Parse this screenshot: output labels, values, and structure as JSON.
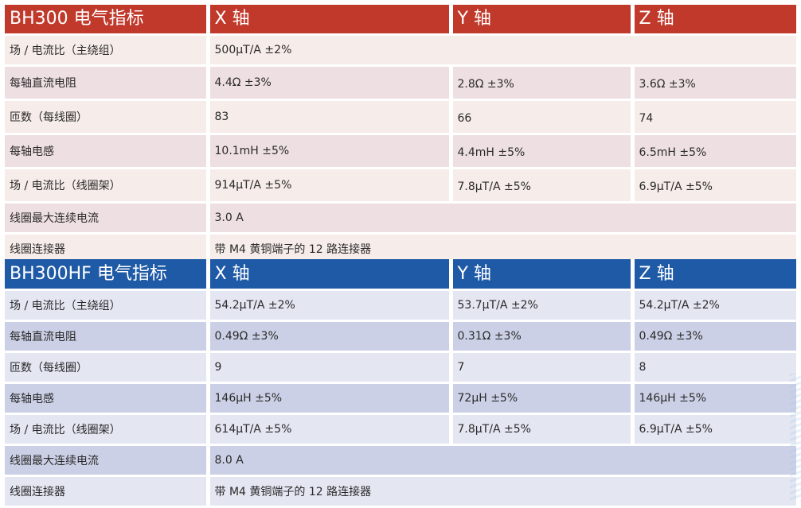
{
  "bh300": {
    "header": [
      "BH300 电气指标",
      "X 轴",
      "Y 轴",
      "Z 轴"
    ],
    "rows": [
      {
        "label": "场 / 电流比（主绕组）",
        "x": "500µT/A ±2%",
        "y": "",
        "z": ""
      },
      {
        "label": "每轴直流电阻",
        "x": "4.4Ω ±3%",
        "y": "2.8Ω ±3%",
        "z": "3.6Ω ±3%"
      },
      {
        "label": "匝数（每线圈）",
        "x": "83",
        "y": "66",
        "z": "74"
      },
      {
        "label": "每轴电感",
        "x": "10.1mH ±5%",
        "y": "4.4mH ±5%",
        "z": "6.5mH ±5%"
      },
      {
        "label": "场 / 电流比（线圈架）",
        "x": "914µT/A ±5%",
        "y": "7.8µT/A ±5%",
        "z": "6.9µT/A ±5%"
      },
      {
        "label": "线圈最大连续电流",
        "x": "3.0 A",
        "y": "",
        "z": ""
      },
      {
        "label": "线圈连接器",
        "x": "带 M4 黄铜端子的 12 路连接器",
        "y": "",
        "z": ""
      }
    ]
  },
  "bh300hf": {
    "header": [
      "BH300HF 电气指标",
      "X 轴",
      "Y 轴",
      "Z 轴"
    ],
    "rows": [
      {
        "label": "场 / 电流比（主绕组）",
        "x": "54.2µT/A ±2%",
        "y": "53.7µT/A ±2%",
        "z": "54.2µT/A ±2%"
      },
      {
        "label": "每轴直流电阻",
        "x": "0.49Ω ±3%",
        "y": "0.31Ω ±3%",
        "z": "0.49Ω ±3%"
      },
      {
        "label": "匝数（每线圈）",
        "x": "9",
        "y": "7",
        "z": "8"
      },
      {
        "label": "每轴电感",
        "x": "146µH ±5%",
        "y": "72µH ±5%",
        "z": "146µH ±5%"
      },
      {
        "label": "场 / 电流比（线圈架）",
        "x": "614µT/A ±5%",
        "y": "7.8µT/A ±5%",
        "z": "6.9µT/A ±5%"
      },
      {
        "label": "线圈最大连续电流",
        "x": "8.0 A",
        "y": "",
        "z": ""
      },
      {
        "label": "线圈连接器",
        "x": "带 M4 黄铜端子的 12 路连接器",
        "y": "",
        "z": ""
      }
    ]
  },
  "colors": {
    "bh300_header": "#c0392b",
    "bh300_row_light": "#f6ece9",
    "bh300_row_dark": "#eedfe3",
    "bh300hf_header": "#1f5aa6",
    "bh300hf_row_light": "#e4e6f2",
    "bh300hf_row_dark": "#ccd0e6"
  }
}
